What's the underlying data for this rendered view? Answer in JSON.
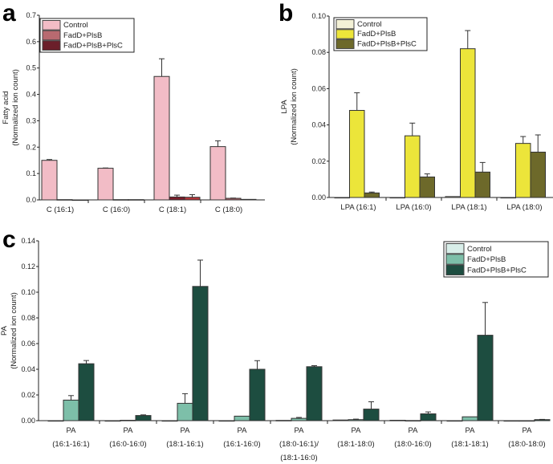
{
  "chart_data": [
    {
      "type": "bar",
      "panel_label": "a",
      "title": "",
      "ylabel": [
        "Fatty acid",
        "(Normalized ion count)"
      ],
      "xlabel": "",
      "ylim": [
        0,
        0.7
      ],
      "yticks": [
        "0.0",
        "0.1",
        "0.2",
        "0.3",
        "0.4",
        "0.5",
        "0.6",
        "0.7"
      ],
      "categories": [
        [
          "C (16:1)"
        ],
        [
          "C (16:0)"
        ],
        [
          "C (18:1)"
        ],
        [
          "C (18:0)"
        ]
      ],
      "legend_position": "top-left",
      "series": [
        {
          "name": "Control",
          "color": "#f2bcc6",
          "values": [
            0.15,
            0.12,
            0.468,
            0.202
          ],
          "errors": [
            0.153,
            0.121,
            0.535,
            0.224
          ]
        },
        {
          "name": "FadD+PlsB",
          "color": "#b86a70",
          "values": [
            0.001,
            0.001,
            0.011,
            0.006
          ],
          "errors": [
            null,
            null,
            0.018,
            0.007
          ],
          "highlight_color": "#7a1e2a"
        },
        {
          "name": "FadD+PlsB+PlsC",
          "color": "#6b1f2a",
          "values": [
            0.0,
            0.001,
            0.01,
            0.002
          ],
          "errors": [
            null,
            null,
            0.02,
            null
          ],
          "highlight_color": "#b8363a"
        }
      ]
    },
    {
      "type": "bar",
      "panel_label": "b",
      "title": "",
      "ylabel": [
        "LPA",
        "(Normalized ion count)"
      ],
      "xlabel": "",
      "ylim": [
        0,
        0.1
      ],
      "yticks": [
        "0.00",
        "0.02",
        "0.04",
        "0.06",
        "0.08",
        "0.10"
      ],
      "categories": [
        [
          "LPA (16:1)"
        ],
        [
          "LPA (16:0)"
        ],
        [
          "LPA (18:1)"
        ],
        [
          "LPA (18:0)"
        ]
      ],
      "legend_position": "top-left",
      "series": [
        {
          "name": "Control",
          "color": "#f3f1d6",
          "values": [
            0,
            0,
            0.0005,
            0
          ],
          "errors": [
            null,
            null,
            null,
            null
          ]
        },
        {
          "name": "FadD+PlsB",
          "color": "#ece53a",
          "values": [
            0.048,
            0.034,
            0.082,
            0.0298
          ],
          "errors": [
            0.0577,
            0.041,
            0.092,
            0.0336
          ]
        },
        {
          "name": "FadD+PlsB+PlsC",
          "color": "#6d692a",
          "values": [
            0.0025,
            0.0113,
            0.014,
            0.025
          ],
          "errors": [
            0.003,
            0.013,
            0.0193,
            0.0345
          ]
        }
      ]
    },
    {
      "type": "bar",
      "panel_label": "c",
      "title": "",
      "ylabel": [
        "PA",
        "(Normalized ion count)"
      ],
      "xlabel": "",
      "ylim": [
        0,
        0.14
      ],
      "yticks": [
        "0.00",
        "0.02",
        "0.04",
        "0.06",
        "0.08",
        "0.10",
        "0.12",
        "0.14"
      ],
      "categories": [
        [
          "PA",
          "(16:1-16:1)"
        ],
        [
          "PA",
          "(16:0-16:0)"
        ],
        [
          "PA",
          "(18:1-16:1)"
        ],
        [
          "PA",
          "(16:1-16:0)"
        ],
        [
          "PA",
          "(18:0-16:1)/",
          "(18:1-16:0)"
        ],
        [
          "PA",
          "(18:1-18:0)"
        ],
        [
          "PA",
          "(18:0-16:0)"
        ],
        [
          "PA",
          "(18:1-18:1)"
        ],
        [
          "PA",
          "(18:0-18:0)"
        ]
      ],
      "legend_position": "top-right",
      "series": [
        {
          "name": "Control",
          "color": "#d8eee9",
          "values": [
            0,
            0,
            0,
            0,
            0.0002,
            0.0005,
            0.0003,
            0,
            0
          ],
          "errors": [
            null,
            null,
            null,
            null,
            null,
            null,
            null,
            null,
            null
          ]
        },
        {
          "name": "FadD+PlsB",
          "color": "#7dbfa9",
          "values": [
            0.016,
            0.0003,
            0.0135,
            0.0035,
            0.0018,
            0.0008,
            0.0001,
            0.003,
            0
          ],
          "errors": [
            0.0195,
            null,
            0.021,
            null,
            0.0025,
            0.0012,
            null,
            null,
            null
          ]
        },
        {
          "name": "FadD+PlsB+PlsC",
          "color": "#1d4d40",
          "values": [
            0.0443,
            0.004,
            0.1045,
            0.04,
            0.042,
            0.009,
            0.0053,
            0.0665,
            0.0008
          ],
          "errors": [
            0.0468,
            0.0045,
            0.125,
            0.0467,
            0.0428,
            0.0147,
            0.0068,
            0.092,
            0.001
          ]
        }
      ]
    }
  ]
}
